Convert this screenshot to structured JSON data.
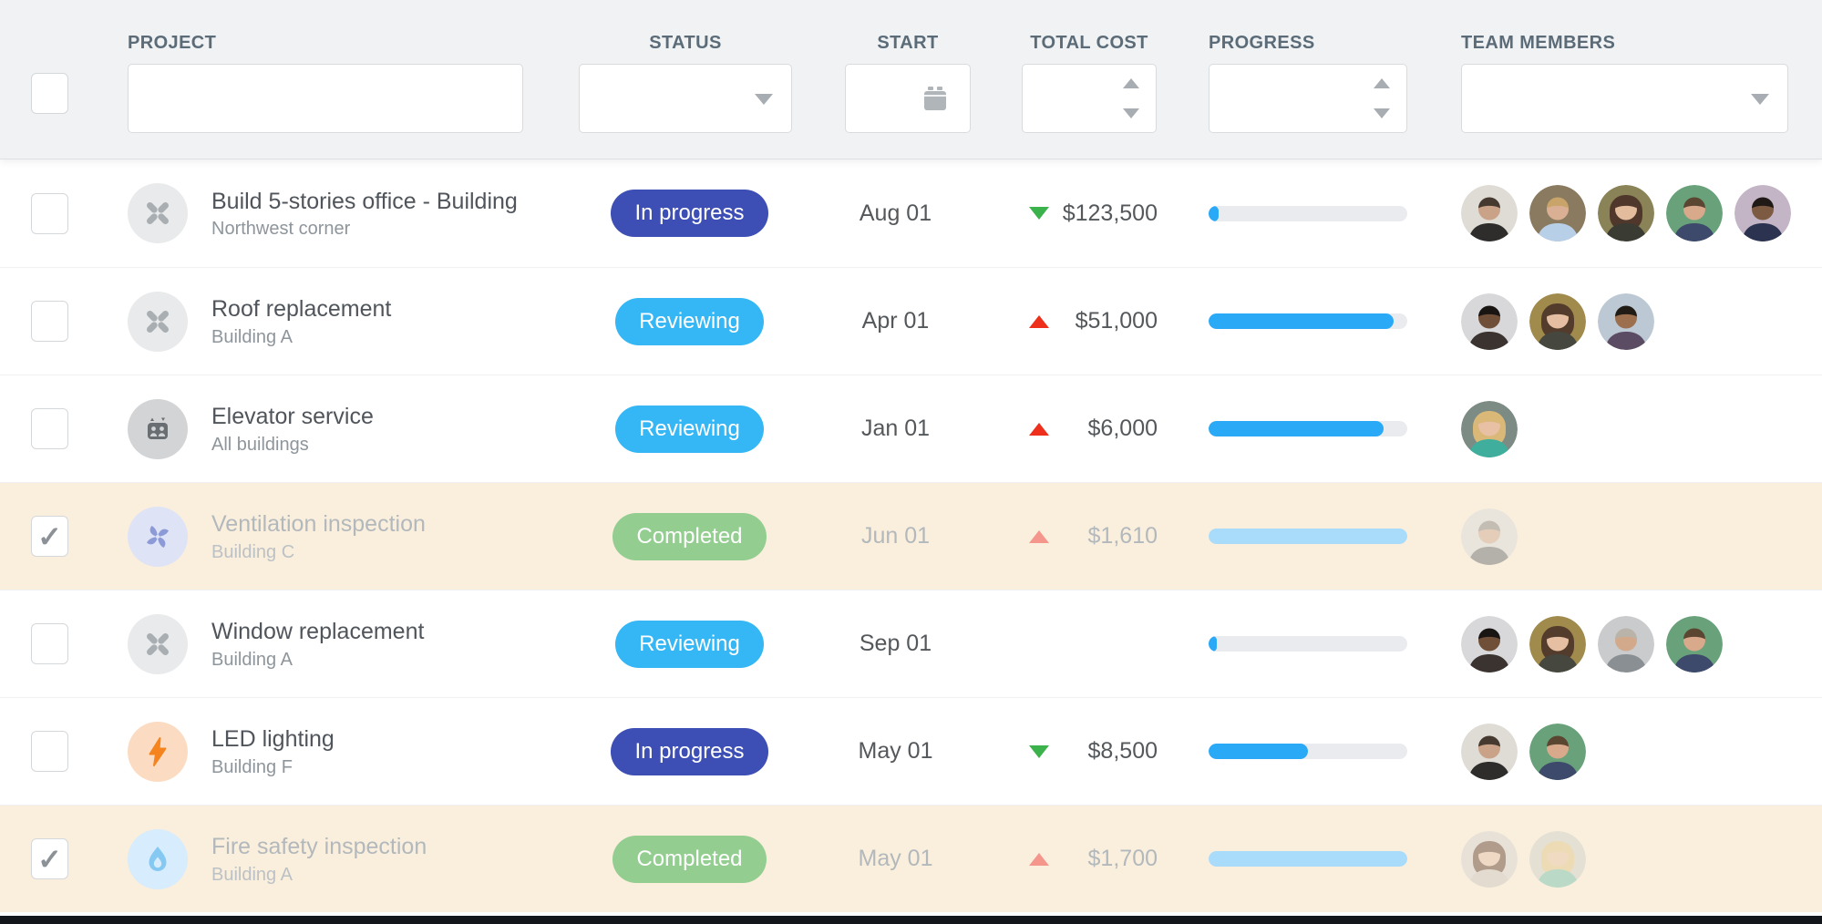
{
  "columns": {
    "project": "PROJECT",
    "status": "STATUS",
    "start": "START",
    "total_cost": "TOTAL COST",
    "progress": "PROGRESS",
    "team": "TEAM MEMBERS"
  },
  "filters": {
    "select_all": {
      "checked": false
    },
    "project": {
      "value": "",
      "placeholder": ""
    },
    "status": {
      "value": "",
      "icon": "caret-down-icon"
    },
    "start": {
      "value": "",
      "icon": "calendar-icon"
    },
    "total_cost": {
      "value": "",
      "icon": "spinner-icon"
    },
    "progress": {
      "value": "",
      "icon": "spinner-icon"
    },
    "team": {
      "value": "",
      "icon": "caret-down-icon"
    }
  },
  "colors": {
    "header_bg": "#f0f2f4",
    "badge_in_progress": "#3d4fb4",
    "badge_reviewing": "#35b6f5",
    "badge_completed": "#93ce90",
    "progress_fill": "#2aa9f6",
    "progress_fill_completed": "#a9dbfa",
    "progress_track": "#e9ebee",
    "trend_up": "#ee2f1c",
    "trend_down": "#3cb24c",
    "trend_up_muted": "#f4968c",
    "completed_row_bg": "#faefdd"
  },
  "rows": [
    {
      "checked": false,
      "completed": false,
      "icon": "tools",
      "icon_bg": "#e9eaeb",
      "title": "Build 5-stories office - Building",
      "subtitle": "Northwest corner",
      "status": "In progress",
      "status_type": "in-progress",
      "start": "Aug 01",
      "trend": "down",
      "cost": "$123,500",
      "progress": 5,
      "team": [
        {
          "label": "man-beard-sunglasses",
          "bg": "#dfdbd5",
          "skin": "#c9a288",
          "hair": "#46392f",
          "shirt": "#2e2d2b",
          "hair_style": "short"
        },
        {
          "label": "blond-man-blue-shirt",
          "bg": "#8a7a5f",
          "skin": "#d9b093",
          "hair": "#c8a36a",
          "shirt": "#b8cfe8",
          "hair_style": "short"
        },
        {
          "label": "brunette-woman",
          "bg": "#8a8357",
          "skin": "#e3bb9d",
          "hair": "#4f382b",
          "shirt": "#3a3b33",
          "hair_style": "long"
        },
        {
          "label": "young-man-plaid",
          "bg": "#69a27a",
          "skin": "#d8a98a",
          "hair": "#5a4631",
          "shirt": "#3d4a6b",
          "hair_style": "short"
        },
        {
          "label": "man-in-suit",
          "bg": "#c3b4c6",
          "skin": "#7d5b43",
          "hair": "#1f1a16",
          "shirt": "#2b3350",
          "hair_style": "short"
        }
      ]
    },
    {
      "checked": false,
      "completed": false,
      "icon": "tools",
      "icon_bg": "#e9eaeb",
      "title": "Roof replacement",
      "subtitle": "Building A",
      "status": "Reviewing",
      "status_type": "reviewing",
      "start": "Apr 01",
      "trend": "up",
      "cost": "$51,000",
      "progress": 93,
      "team": [
        {
          "label": "man-glasses",
          "bg": "#d8d8da",
          "skin": "#6f4f38",
          "hair": "#191512",
          "shirt": "#3a3330",
          "hair_style": "short"
        },
        {
          "label": "brunette-woman",
          "bg": "#a08b4d",
          "skin": "#e6bfa2",
          "hair": "#543c2c",
          "shirt": "#46473f",
          "hair_style": "long"
        },
        {
          "label": "man-suit-plaid-shirt",
          "bg": "#bcc8d4",
          "skin": "#9c6f4e",
          "hair": "#211b15",
          "shirt": "#5b4b63",
          "hair_style": "short"
        }
      ]
    },
    {
      "checked": false,
      "completed": false,
      "icon": "elevator",
      "icon_bg": "#d2d4d6",
      "title": "Elevator service",
      "subtitle": "All buildings",
      "status": "Reviewing",
      "status_type": "reviewing",
      "start": "Jan 01",
      "trend": "up",
      "cost": "$6,000",
      "progress": 88,
      "team": [
        {
          "label": "blonde-woman-teal-top",
          "bg": "#7d8b85",
          "skin": "#e8c1a4",
          "hair": "#d9b878",
          "shirt": "#3fae9d",
          "hair_style": "long"
        }
      ]
    },
    {
      "checked": true,
      "completed": true,
      "icon": "fan",
      "icon_bg": "#dfe3f6",
      "title": "Ventilation inspection",
      "subtitle": "Building C",
      "status": "Completed",
      "status_type": "completed",
      "start": "Jun 01",
      "trend": "up",
      "cost": "$1,610",
      "progress": 100,
      "team": [
        {
          "label": "gray-haired-man",
          "bg": "#d9dadc",
          "skin": "#cfae97",
          "hair": "#8e8d8b",
          "shirt": "#6f7478",
          "hair_style": "short"
        }
      ]
    },
    {
      "checked": false,
      "completed": false,
      "icon": "tools",
      "icon_bg": "#e9eaeb",
      "title": "Window replacement",
      "subtitle": "Building A",
      "status": "Reviewing",
      "status_type": "reviewing",
      "start": "Sep 01",
      "trend": "none",
      "cost": "",
      "progress": 4,
      "team": [
        {
          "label": "man-glasses",
          "bg": "#d8d8da",
          "skin": "#6f4f38",
          "hair": "#191512",
          "shirt": "#3a3330",
          "hair_style": "short"
        },
        {
          "label": "brunette-woman",
          "bg": "#a08b4d",
          "skin": "#e6bfa2",
          "hair": "#543c2c",
          "shirt": "#46473f",
          "hair_style": "long"
        },
        {
          "label": "bald-man-glasses",
          "bg": "#c9cbcd",
          "skin": "#d3a98c",
          "hair": "#b9b3a9",
          "shirt": "#8a8f93",
          "hair_style": "short"
        },
        {
          "label": "young-man-plaid",
          "bg": "#69a27a",
          "skin": "#d8a98a",
          "hair": "#5a4631",
          "shirt": "#3d4a6b",
          "hair_style": "short"
        }
      ]
    },
    {
      "checked": false,
      "completed": false,
      "icon": "lightning",
      "icon_bg": "#fbdcc3",
      "title": "LED lighting",
      "subtitle": "Building F",
      "status": "In progress",
      "status_type": "in-progress",
      "start": "May 01",
      "trend": "down",
      "cost": "$8,500",
      "progress": 50,
      "team": [
        {
          "label": "man-beard-sunglasses",
          "bg": "#dfdbd5",
          "skin": "#c9a288",
          "hair": "#46392f",
          "shirt": "#2e2d2b",
          "hair_style": "short"
        },
        {
          "label": "young-man-plaid",
          "bg": "#69a27a",
          "skin": "#d8a98a",
          "hair": "#5a4631",
          "shirt": "#3d4a6b",
          "hair_style": "short"
        }
      ]
    },
    {
      "checked": true,
      "completed": true,
      "icon": "flame",
      "icon_bg": "#d7ecfc",
      "title": "Fire safety inspection",
      "subtitle": "Building A",
      "status": "Completed",
      "status_type": "completed",
      "start": "May 01",
      "trend": "up",
      "cost": "$1,700",
      "progress": 100,
      "team": [
        {
          "label": "young-woman",
          "bg": "#d8d5d3",
          "skin": "#e6c4ad",
          "hair": "#6b4a3a",
          "shirt": "#cfc9c4",
          "hair_style": "long"
        },
        {
          "label": "blonde-woman",
          "bg": "#cfd3cd",
          "skin": "#e9c6a9",
          "hair": "#e2c98e",
          "shirt": "#7ec4b2",
          "hair_style": "long"
        }
      ]
    }
  ]
}
